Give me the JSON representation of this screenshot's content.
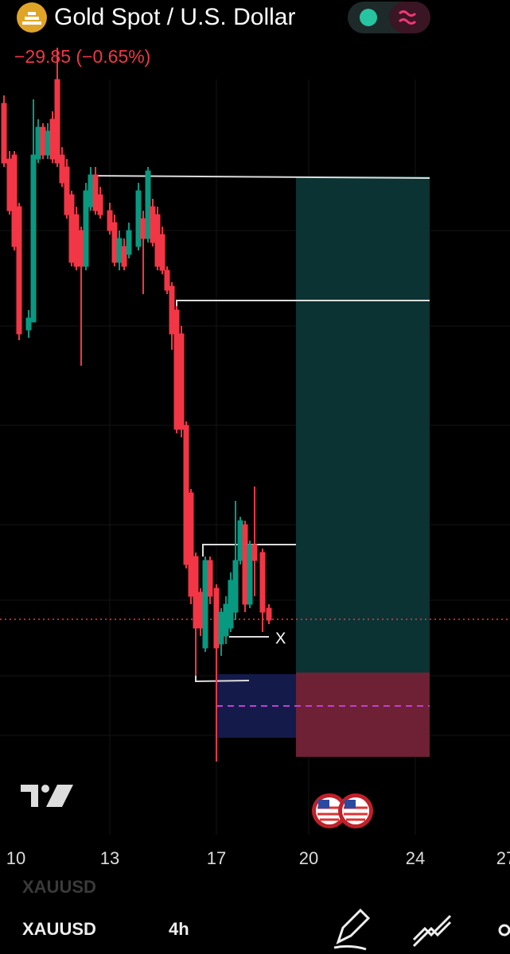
{
  "header": {
    "title": "Gold Spot / U.S. Dollar",
    "change": "−29.85 (−0.65%)"
  },
  "chart": {
    "x_labels": [
      "10",
      "13",
      "17",
      "20",
      "24",
      "27"
    ],
    "marker_label": "X"
  },
  "footer": {
    "symbol_ghost": "XAUUSD",
    "symbol": "XAUUSD",
    "interval": "4h"
  }
}
